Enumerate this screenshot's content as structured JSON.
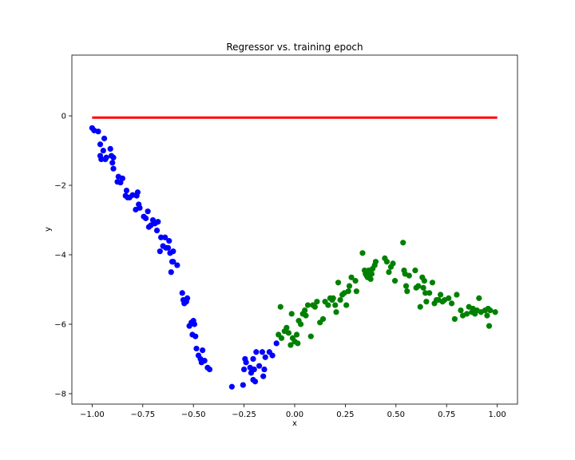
{
  "chart_data": {
    "type": "scatter",
    "title": "Regressor vs. training epoch",
    "xlabel": "x",
    "ylabel": "y",
    "xlim": [
      -1.1,
      1.1
    ],
    "ylim": [
      -8.3,
      1.75
    ],
    "x_ticks": [
      -1.0,
      -0.75,
      -0.5,
      -0.25,
      0.0,
      0.25,
      0.5,
      0.75,
      1.0
    ],
    "x_tick_labels": [
      "−1.00",
      "−0.75",
      "−0.50",
      "−0.25",
      "0.00",
      "0.25",
      "0.50",
      "0.75",
      "1.00"
    ],
    "y_ticks": [
      0,
      -2,
      -4,
      -6,
      -8
    ],
    "y_tick_labels": [
      "0",
      "−2",
      "−4",
      "−6",
      "−8"
    ],
    "grid": false,
    "colors": {
      "blue": "#0000ff",
      "green": "#008000",
      "red": "#ff0000"
    },
    "series": [
      {
        "color": "#0000ff",
        "marker": "circle",
        "points": [
          [
            -1.0,
            -0.35
          ],
          [
            -0.99,
            -0.42
          ],
          [
            -0.97,
            -0.45
          ],
          [
            -0.96,
            -0.82
          ],
          [
            -0.96,
            -1.15
          ],
          [
            -0.955,
            -1.25
          ],
          [
            -0.945,
            -1.0
          ],
          [
            -0.94,
            -0.65
          ],
          [
            -0.935,
            -1.25
          ],
          [
            -0.93,
            -1.2
          ],
          [
            -0.91,
            -0.95
          ],
          [
            -0.905,
            -1.15
          ],
          [
            -0.9,
            -1.35
          ],
          [
            -0.895,
            -1.52
          ],
          [
            -0.895,
            -1.2
          ],
          [
            -0.875,
            -1.9
          ],
          [
            -0.87,
            -1.75
          ],
          [
            -0.86,
            -1.92
          ],
          [
            -0.85,
            -1.8
          ],
          [
            -0.835,
            -2.3
          ],
          [
            -0.83,
            -2.15
          ],
          [
            -0.825,
            -2.35
          ],
          [
            -0.815,
            -2.35
          ],
          [
            -0.8,
            -2.28
          ],
          [
            -0.785,
            -2.7
          ],
          [
            -0.78,
            -2.3
          ],
          [
            -0.775,
            -2.2
          ],
          [
            -0.77,
            -2.55
          ],
          [
            -0.765,
            -2.65
          ],
          [
            -0.745,
            -2.9
          ],
          [
            -0.735,
            -2.95
          ],
          [
            -0.725,
            -2.75
          ],
          [
            -0.72,
            -3.2
          ],
          [
            -0.71,
            -3.15
          ],
          [
            -0.7,
            -3.0
          ],
          [
            -0.69,
            -3.1
          ],
          [
            -0.68,
            -3.3
          ],
          [
            -0.675,
            -3.05
          ],
          [
            -0.665,
            -3.9
          ],
          [
            -0.66,
            -3.5
          ],
          [
            -0.65,
            -3.75
          ],
          [
            -0.64,
            -3.5
          ],
          [
            -0.635,
            -3.8
          ],
          [
            -0.625,
            -3.8
          ],
          [
            -0.62,
            -3.6
          ],
          [
            -0.615,
            -3.95
          ],
          [
            -0.61,
            -4.5
          ],
          [
            -0.605,
            -4.2
          ],
          [
            -0.6,
            -3.9
          ],
          [
            -0.6,
            -4.2
          ],
          [
            -0.58,
            -4.3
          ],
          [
            -0.555,
            -5.1
          ],
          [
            -0.55,
            -5.3
          ],
          [
            -0.545,
            -5.4
          ],
          [
            -0.535,
            -5.35
          ],
          [
            -0.53,
            -5.25
          ],
          [
            -0.52,
            -6.05
          ],
          [
            -0.51,
            -5.95
          ],
          [
            -0.505,
            -6.3
          ],
          [
            -0.5,
            -5.9
          ],
          [
            -0.495,
            -6.0
          ],
          [
            -0.49,
            -6.35
          ],
          [
            -0.485,
            -6.7
          ],
          [
            -0.475,
            -6.9
          ],
          [
            -0.465,
            -7.0
          ],
          [
            -0.46,
            -7.1
          ],
          [
            -0.455,
            -6.75
          ],
          [
            -0.445,
            -7.05
          ],
          [
            -0.43,
            -7.25
          ],
          [
            -0.42,
            -7.3
          ],
          [
            -0.31,
            -7.8
          ],
          [
            -0.255,
            -7.75
          ],
          [
            -0.25,
            -7.3
          ],
          [
            -0.245,
            -7.0
          ],
          [
            -0.24,
            -7.1
          ],
          [
            -0.22,
            -7.25
          ],
          [
            -0.215,
            -7.4
          ],
          [
            -0.205,
            -7.6
          ],
          [
            -0.205,
            -7.0
          ],
          [
            -0.2,
            -7.3
          ],
          [
            -0.195,
            -7.65
          ],
          [
            -0.19,
            -6.8
          ],
          [
            -0.175,
            -7.2
          ],
          [
            -0.16,
            -6.8
          ],
          [
            -0.155,
            -7.5
          ],
          [
            -0.15,
            -7.3
          ],
          [
            -0.145,
            -6.95
          ],
          [
            -0.125,
            -6.8
          ],
          [
            -0.11,
            -6.9
          ],
          [
            -0.09,
            -6.55
          ]
        ]
      },
      {
        "color": "#008000",
        "marker": "circle",
        "points": [
          [
            -0.08,
            -6.3
          ],
          [
            -0.07,
            -5.5
          ],
          [
            -0.065,
            -6.4
          ],
          [
            -0.05,
            -6.2
          ],
          [
            -0.04,
            -6.1
          ],
          [
            -0.03,
            -6.25
          ],
          [
            -0.02,
            -6.6
          ],
          [
            -0.015,
            -5.7
          ],
          [
            -0.01,
            -6.4
          ],
          [
            0.0,
            -6.5
          ],
          [
            0.01,
            -6.3
          ],
          [
            0.015,
            -6.55
          ],
          [
            0.02,
            -5.9
          ],
          [
            0.03,
            -6.0
          ],
          [
            0.04,
            -5.7
          ],
          [
            0.05,
            -5.6
          ],
          [
            0.055,
            -5.75
          ],
          [
            0.065,
            -5.45
          ],
          [
            0.08,
            -6.35
          ],
          [
            0.09,
            -5.45
          ],
          [
            0.1,
            -5.5
          ],
          [
            0.11,
            -5.35
          ],
          [
            0.125,
            -5.95
          ],
          [
            0.14,
            -5.85
          ],
          [
            0.15,
            -5.35
          ],
          [
            0.165,
            -5.45
          ],
          [
            0.175,
            -5.25
          ],
          [
            0.185,
            -5.3
          ],
          [
            0.19,
            -5.25
          ],
          [
            0.2,
            -5.45
          ],
          [
            0.205,
            -5.65
          ],
          [
            0.215,
            -4.8
          ],
          [
            0.225,
            -5.3
          ],
          [
            0.235,
            -5.15
          ],
          [
            0.245,
            -5.1
          ],
          [
            0.255,
            -5.45
          ],
          [
            0.265,
            -5.05
          ],
          [
            0.27,
            -4.9
          ],
          [
            0.28,
            -4.65
          ],
          [
            0.3,
            -4.75
          ],
          [
            0.305,
            -5.05
          ],
          [
            0.335,
            -3.95
          ],
          [
            0.345,
            -4.45
          ],
          [
            0.35,
            -4.55
          ],
          [
            0.355,
            -4.6
          ],
          [
            0.36,
            -4.65
          ],
          [
            0.365,
            -4.45
          ],
          [
            0.37,
            -4.5
          ],
          [
            0.375,
            -4.7
          ],
          [
            0.38,
            -4.55
          ],
          [
            0.385,
            -4.4
          ],
          [
            0.395,
            -4.3
          ],
          [
            0.4,
            -4.2
          ],
          [
            0.445,
            -4.1
          ],
          [
            0.455,
            -4.2
          ],
          [
            0.465,
            -4.5
          ],
          [
            0.475,
            -4.35
          ],
          [
            0.485,
            -4.25
          ],
          [
            0.495,
            -4.75
          ],
          [
            0.535,
            -3.65
          ],
          [
            0.54,
            -4.45
          ],
          [
            0.545,
            -4.55
          ],
          [
            0.55,
            -4.9
          ],
          [
            0.555,
            -5.05
          ],
          [
            0.565,
            -4.6
          ],
          [
            0.595,
            -4.45
          ],
          [
            0.6,
            -4.95
          ],
          [
            0.61,
            -4.9
          ],
          [
            0.62,
            -5.5
          ],
          [
            0.63,
            -4.65
          ],
          [
            0.635,
            -4.95
          ],
          [
            0.64,
            -4.75
          ],
          [
            0.645,
            -5.1
          ],
          [
            0.65,
            -5.35
          ],
          [
            0.665,
            -5.1
          ],
          [
            0.68,
            -4.8
          ],
          [
            0.69,
            -5.4
          ],
          [
            0.7,
            -5.3
          ],
          [
            0.71,
            -5.3
          ],
          [
            0.72,
            -5.15
          ],
          [
            0.73,
            -5.35
          ],
          [
            0.74,
            -5.3
          ],
          [
            0.76,
            -5.25
          ],
          [
            0.775,
            -5.4
          ],
          [
            0.79,
            -5.85
          ],
          [
            0.8,
            -5.15
          ],
          [
            0.82,
            -5.6
          ],
          [
            0.83,
            -5.75
          ],
          [
            0.85,
            -5.7
          ],
          [
            0.86,
            -5.5
          ],
          [
            0.875,
            -5.65
          ],
          [
            0.88,
            -5.55
          ],
          [
            0.89,
            -5.7
          ],
          [
            0.9,
            -5.6
          ],
          [
            0.91,
            -5.25
          ],
          [
            0.92,
            -5.65
          ],
          [
            0.94,
            -5.6
          ],
          [
            0.95,
            -5.75
          ],
          [
            0.955,
            -5.55
          ],
          [
            0.96,
            -6.05
          ],
          [
            0.965,
            -5.6
          ],
          [
            0.99,
            -5.65
          ]
        ]
      },
      {
        "color": "#ff0000",
        "marker": "line",
        "x_range": [
          -1.0,
          1.0
        ],
        "y_constant": -0.05
      }
    ]
  }
}
